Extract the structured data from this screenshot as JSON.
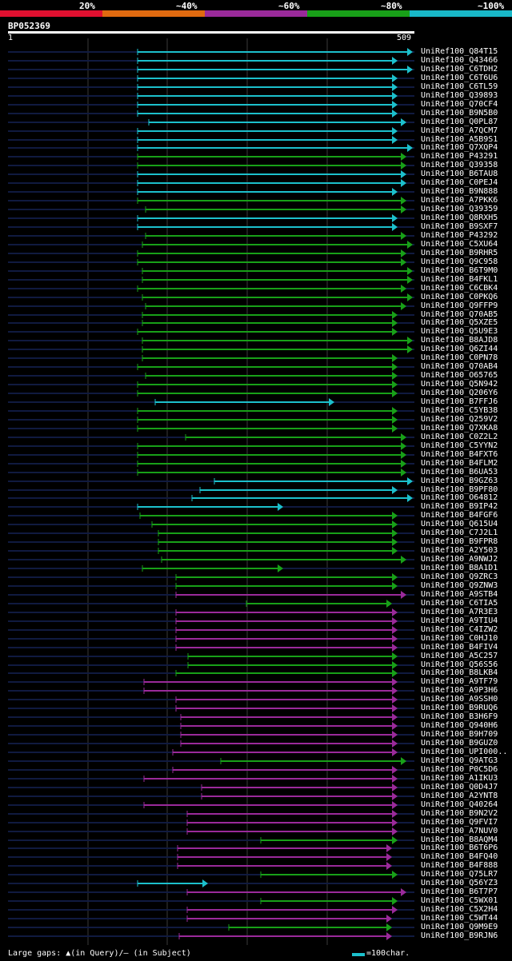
{
  "legend": {
    "segments": [
      {
        "label": "20%",
        "color": "#e01030"
      },
      {
        "label": "~40%",
        "color": "#e06a10"
      },
      {
        "label": "~60%",
        "color": "#9a2a9a"
      },
      {
        "label": "~80%",
        "color": "#18a018"
      },
      {
        "label": "~100%",
        "color": "#18b8c8"
      }
    ]
  },
  "query": {
    "id": "BP052369",
    "start": "1",
    "end": "509"
  },
  "footer": {
    "gaps_text": "Large gaps: ▲(in Query)/— (in Subject)",
    "scale_text": "=100char."
  },
  "hits": [
    {
      "id": "UniRef100_Q84T15",
      "c": "cyan",
      "s": 172,
      "e": 516
    },
    {
      "id": "UniRef100_Q43466",
      "c": "cyan",
      "s": 172,
      "e": 497
    },
    {
      "id": "UniRef100_C6TDH2",
      "c": "cyan",
      "s": 172,
      "e": 516
    },
    {
      "id": "UniRef100_C6T6U6",
      "c": "cyan",
      "s": 172,
      "e": 497
    },
    {
      "id": "UniRef100_C6TL59",
      "c": "cyan",
      "s": 172,
      "e": 497
    },
    {
      "id": "UniRef100_Q39893",
      "c": "cyan",
      "s": 172,
      "e": 497
    },
    {
      "id": "UniRef100_Q70CF4",
      "c": "cyan",
      "s": 172,
      "e": 497
    },
    {
      "id": "UniRef100_B9N5B0",
      "c": "cyan",
      "s": 172,
      "e": 497
    },
    {
      "id": "UniRef100_Q0PL87",
      "c": "cyan",
      "s": 186,
      "e": 508
    },
    {
      "id": "UniRef100_A7QCM7",
      "c": "cyan",
      "s": 172,
      "e": 497
    },
    {
      "id": "UniRef100_A5B9S1",
      "c": "cyan",
      "s": 172,
      "e": 497
    },
    {
      "id": "UniRef100_Q7XQP4",
      "c": "cyan",
      "s": 172,
      "e": 516
    },
    {
      "id": "UniRef100_P43291",
      "c": "green",
      "s": 172,
      "e": 508
    },
    {
      "id": "UniRef100_Q39358",
      "c": "green",
      "s": 172,
      "e": 508
    },
    {
      "id": "UniRef100_B6TAU8",
      "c": "cyan",
      "s": 172,
      "e": 508
    },
    {
      "id": "UniRef100_C0PEJ4",
      "c": "cyan",
      "s": 172,
      "e": 508
    },
    {
      "id": "UniRef100_B9N888",
      "c": "cyan",
      "s": 172,
      "e": 497
    },
    {
      "id": "UniRef100_A7PKK6",
      "c": "green",
      "s": 172,
      "e": 508
    },
    {
      "id": "UniRef100_Q39359",
      "c": "green",
      "s": 182,
      "e": 508
    },
    {
      "id": "UniRef100_Q8RXH5",
      "c": "cyan",
      "s": 172,
      "e": 497
    },
    {
      "id": "UniRef100_B9SXF7",
      "c": "cyan",
      "s": 172,
      "e": 497
    },
    {
      "id": "UniRef100_P43292",
      "c": "green",
      "s": 182,
      "e": 508
    },
    {
      "id": "UniRef100_C5XU64",
      "c": "green",
      "s": 178,
      "e": 516
    },
    {
      "id": "UniRef100_B9RHR5",
      "c": "green",
      "s": 172,
      "e": 508
    },
    {
      "id": "UniRef100_Q9C958",
      "c": "green",
      "s": 172,
      "e": 508
    },
    {
      "id": "UniRef100_B6T9M0",
      "c": "green",
      "s": 178,
      "e": 516
    },
    {
      "id": "UniRef100_B4FKL1",
      "c": "green",
      "s": 178,
      "e": 516
    },
    {
      "id": "UniRef100_C6CBK4",
      "c": "green",
      "s": 172,
      "e": 508
    },
    {
      "id": "UniRef100_C0PKQ6",
      "c": "green",
      "s": 178,
      "e": 516
    },
    {
      "id": "UniRef100_Q9FFP9",
      "c": "green",
      "s": 182,
      "e": 508
    },
    {
      "id": "UniRef100_Q70AB5",
      "c": "green",
      "s": 178,
      "e": 497
    },
    {
      "id": "UniRef100_Q5XZE5",
      "c": "green",
      "s": 178,
      "e": 497
    },
    {
      "id": "UniRef100_Q5U9E3",
      "c": "green",
      "s": 172,
      "e": 497
    },
    {
      "id": "UniRef100_B8AJD8",
      "c": "green",
      "s": 178,
      "e": 516
    },
    {
      "id": "UniRef100_Q6ZI44",
      "c": "green",
      "s": 178,
      "e": 516
    },
    {
      "id": "UniRef100_C0PN78",
      "c": "green",
      "s": 178,
      "e": 497
    },
    {
      "id": "UniRef100_Q70AB4",
      "c": "green",
      "s": 172,
      "e": 497
    },
    {
      "id": "UniRef100_O65765",
      "c": "green",
      "s": 182,
      "e": 497
    },
    {
      "id": "UniRef100_Q5N942",
      "c": "green",
      "s": 172,
      "e": 497
    },
    {
      "id": "UniRef100_Q206Y6",
      "c": "green",
      "s": 172,
      "e": 497
    },
    {
      "id": "UniRef100_B7FFJ6",
      "c": "cyan",
      "s": 194,
      "e": 418
    },
    {
      "id": "UniRef100_C5YB38",
      "c": "green",
      "s": 172,
      "e": 497
    },
    {
      "id": "UniRef100_Q259V2",
      "c": "green",
      "s": 172,
      "e": 497
    },
    {
      "id": "UniRef100_Q7XKA8",
      "c": "green",
      "s": 172,
      "e": 497
    },
    {
      "id": "UniRef100_C0Z2L2",
      "c": "green",
      "s": 232,
      "e": 508
    },
    {
      "id": "UniRef100_C5YYN2",
      "c": "green",
      "s": 172,
      "e": 508
    },
    {
      "id": "UniRef100_B4FXT6",
      "c": "green",
      "s": 172,
      "e": 508
    },
    {
      "id": "UniRef100_B4FLM2",
      "c": "green",
      "s": 172,
      "e": 508
    },
    {
      "id": "UniRef100_B6UA53",
      "c": "green",
      "s": 172,
      "e": 508
    },
    {
      "id": "UniRef100_B9GZ63",
      "c": "cyan",
      "s": 268,
      "e": 516
    },
    {
      "id": "UniRef100_B9PF80",
      "c": "cyan",
      "s": 250,
      "e": 497
    },
    {
      "id": "UniRef100_O64812",
      "c": "cyan",
      "s": 240,
      "e": 516
    },
    {
      "id": "UniRef100_B9IP42",
      "c": "cyan",
      "s": 172,
      "e": 354
    },
    {
      "id": "UniRef100_B4FGF6",
      "c": "green",
      "s": 175,
      "e": 497
    },
    {
      "id": "UniRef100_Q615U4",
      "c": "green",
      "s": 190,
      "e": 497
    },
    {
      "id": "UniRef100_C7J2L1",
      "c": "green",
      "s": 198,
      "e": 497
    },
    {
      "id": "UniRef100_B9FPR8",
      "c": "green",
      "s": 198,
      "e": 497
    },
    {
      "id": "UniRef100_A2Y503",
      "c": "green",
      "s": 198,
      "e": 497
    },
    {
      "id": "UniRef100_A9NWJ2",
      "c": "green",
      "s": 202,
      "e": 508
    },
    {
      "id": "UniRef100_B8A1D1",
      "c": "green",
      "s": 178,
      "e": 354
    },
    {
      "id": "UniRef100_Q9ZRC3",
      "c": "green",
      "s": 220,
      "e": 497
    },
    {
      "id": "UniRef100_Q9ZNW3",
      "c": "green",
      "s": 220,
      "e": 497
    },
    {
      "id": "UniRef100_A9STB4",
      "c": "purple",
      "s": 220,
      "e": 508
    },
    {
      "id": "UniRef100_C6TIA5",
      "c": "green",
      "s": 308,
      "e": 490
    },
    {
      "id": "UniRef100_A7R3E3",
      "c": "purple",
      "s": 220,
      "e": 497
    },
    {
      "id": "UniRef100_A9TIU4",
      "c": "purple",
      "s": 220,
      "e": 497
    },
    {
      "id": "UniRef100_C4IZW2",
      "c": "purple",
      "s": 220,
      "e": 497
    },
    {
      "id": "UniRef100_C0HJ10",
      "c": "purple",
      "s": 220,
      "e": 497
    },
    {
      "id": "UniRef100_B4FIV4",
      "c": "purple",
      "s": 220,
      "e": 497
    },
    {
      "id": "UniRef100_A5C257",
      "c": "green",
      "s": 235,
      "e": 497
    },
    {
      "id": "UniRef100_Q56S56",
      "c": "green",
      "s": 235,
      "e": 497
    },
    {
      "id": "UniRef100_B8LKB4",
      "c": "green",
      "s": 220,
      "e": 497
    },
    {
      "id": "UniRef100_A9TF79",
      "c": "purple",
      "s": 180,
      "e": 497
    },
    {
      "id": "UniRef100_A9P3H6",
      "c": "purple",
      "s": 180,
      "e": 497
    },
    {
      "id": "UniRef100_A9SSH0",
      "c": "purple",
      "s": 220,
      "e": 497
    },
    {
      "id": "UniRef100_B9RUQ6",
      "c": "purple",
      "s": 220,
      "e": 497
    },
    {
      "id": "UniRef100_B3H6F9",
      "c": "purple",
      "s": 226,
      "e": 497
    },
    {
      "id": "UniRef100_Q940H6",
      "c": "purple",
      "s": 226,
      "e": 497
    },
    {
      "id": "UniRef100_B9H709",
      "c": "purple",
      "s": 226,
      "e": 497
    },
    {
      "id": "UniRef100_B9GUZ0",
      "c": "purple",
      "s": 226,
      "e": 497
    },
    {
      "id": "UniRef100_UPI000..",
      "c": "purple",
      "s": 216,
      "e": 497
    },
    {
      "id": "UniRef100_Q9ATG3",
      "c": "green",
      "s": 276,
      "e": 508
    },
    {
      "id": "UniRef100_P0C5D6",
      "c": "purple",
      "s": 216,
      "e": 497
    },
    {
      "id": "UniRef100_A1IKU3",
      "c": "purple",
      "s": 180,
      "e": 497
    },
    {
      "id": "UniRef100_Q0D4J7",
      "c": "purple",
      "s": 252,
      "e": 497
    },
    {
      "id": "UniRef100_A2YNT8",
      "c": "purple",
      "s": 252,
      "e": 497
    },
    {
      "id": "UniRef100_Q40264",
      "c": "purple",
      "s": 180,
      "e": 497
    },
    {
      "id": "UniRef100_B9N2V2",
      "c": "purple",
      "s": 234,
      "e": 497
    },
    {
      "id": "UniRef100_Q9FVI7",
      "c": "purple",
      "s": 234,
      "e": 497
    },
    {
      "id": "UniRef100_A7NUV0",
      "c": "purple",
      "s": 234,
      "e": 497
    },
    {
      "id": "UniRef100_B8AQM4",
      "c": "green",
      "s": 326,
      "e": 497
    },
    {
      "id": "UniRef100_B6T6P6",
      "c": "purple",
      "s": 222,
      "e": 490
    },
    {
      "id": "UniRef100_B4FQ40",
      "c": "purple",
      "s": 222,
      "e": 490
    },
    {
      "id": "UniRef100_B4F888",
      "c": "purple",
      "s": 222,
      "e": 490
    },
    {
      "id": "UniRef100_Q75LR7",
      "c": "green",
      "s": 326,
      "e": 497
    },
    {
      "id": "UniRef100_Q56YZ3",
      "c": "cyan",
      "s": 172,
      "e": 260
    },
    {
      "id": "UniRef100_B6T7P7",
      "c": "purple",
      "s": 234,
      "e": 508
    },
    {
      "id": "UniRef100_C5WX01",
      "c": "green",
      "s": 326,
      "e": 497
    },
    {
      "id": "UniRef100_C5X2H4",
      "c": "purple",
      "s": 234,
      "e": 497
    },
    {
      "id": "UniRef100_C5WT44",
      "c": "purple",
      "s": 234,
      "e": 490
    },
    {
      "id": "UniRef100_Q9M9E9",
      "c": "green",
      "s": 286,
      "e": 490
    },
    {
      "id": "UniRef100_B9RJN6",
      "c": "purple",
      "s": 224,
      "e": 490
    }
  ]
}
